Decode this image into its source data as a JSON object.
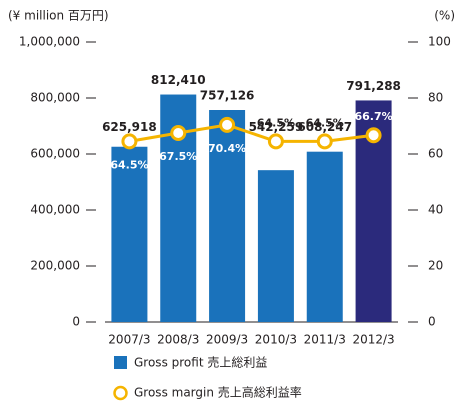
{
  "chart_data": {
    "type": "bar",
    "left_axis_label": "(¥ million 百万円)",
    "right_axis_label": "(%)",
    "categories": [
      "2007/3",
      "2008/3",
      "2009/3",
      "2010/3",
      "2011/3",
      "2012/3"
    ],
    "series": [
      {
        "name": "Gross profit 売上総利益",
        "type": "bar",
        "color": "#1a72bb",
        "highlight_color": "#2b2a7c",
        "values": [
          625918,
          812410,
          757126,
          542259,
          608247,
          791288
        ],
        "value_labels": [
          "625,918",
          "812,410",
          "757,126",
          "542,259",
          "608,247",
          "791,288"
        ]
      },
      {
        "name": "Gross margin 売上高総利益率",
        "type": "line",
        "axis": "y2",
        "color": "#f5b400",
        "values": [
          64.5,
          67.5,
          70.4,
          64.5,
          64.5,
          66.7
        ],
        "value_labels": [
          "64.5%",
          "67.5%",
          "70.4%",
          "64.5%",
          "64.5%",
          "66.7%"
        ]
      }
    ],
    "ylim": [
      0,
      1000000
    ],
    "yticks": [
      0,
      {
        "value": 200000,
        "label": "200,000"
      },
      {
        "value": 400000,
        "label": "400,000"
      },
      {
        "value": 600000,
        "label": "600,000"
      },
      {
        "value": 800000,
        "label": "800,000"
      },
      {
        "value": 1000000,
        "label": "1,000,000"
      }
    ],
    "y2lim": [
      0,
      100
    ],
    "y2ticks": [
      0,
      20,
      40,
      60,
      80,
      100
    ]
  }
}
